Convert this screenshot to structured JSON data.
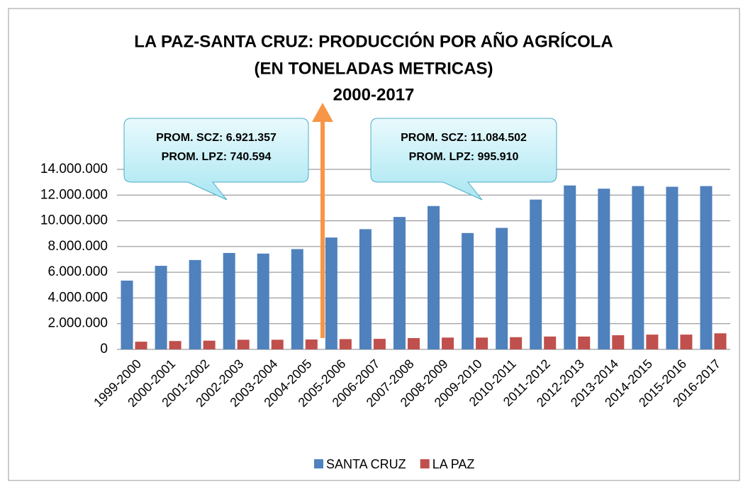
{
  "chart_data": {
    "type": "bar",
    "title": [
      "LA PAZ-SANTA CRUZ: PRODUCCIÓN POR AÑO AGRÍCOLA",
      "(EN TONELADAS METRICAS)",
      "2000-2017"
    ],
    "categories": [
      "1999-2000",
      "2000-2001",
      "2001-2002",
      "2002-2003",
      "2003-2004",
      "2004-2005",
      "2005-2006",
      "2006-2007",
      "2007-2008",
      "2008-2009",
      "2009-2010",
      "2010-2011",
      "2011-2012",
      "2012-2013",
      "2013-2014",
      "2014-2015",
      "2015-2016",
      "2016-2017"
    ],
    "series": [
      {
        "name": "SANTA CRUZ",
        "color": "#4f81bd",
        "values": [
          5350000,
          6500000,
          6950000,
          7500000,
          7450000,
          7800000,
          8700000,
          9350000,
          10300000,
          11150000,
          9050000,
          9450000,
          11650000,
          12750000,
          12500000,
          12700000,
          12650000,
          12700000
        ]
      },
      {
        "name": "LA PAZ",
        "color": "#c0504d",
        "values": [
          600000,
          650000,
          680000,
          750000,
          750000,
          770000,
          800000,
          820000,
          880000,
          920000,
          920000,
          950000,
          1000000,
          1000000,
          1100000,
          1150000,
          1150000,
          1250000
        ]
      }
    ],
    "ylim": [
      0,
      14000000
    ],
    "yticks": [
      0,
      {
        "value": 2000000,
        "label": "2.000.000"
      },
      {
        "value": 4000000,
        "label": "4.000.000"
      },
      {
        "value": 6000000,
        "label": "6.000.000"
      },
      {
        "value": 8000000,
        "label": "8.000.000"
      },
      {
        "value": 10000000,
        "label": "10.000.000"
      },
      {
        "value": 12000000,
        "label": "12.000.000"
      },
      {
        "value": 14000000,
        "label": "14.000.000"
      }
    ],
    "grid": true,
    "legend": "bottom",
    "annotations": [
      [
        "PROM. SCZ: 6.921.357",
        "PROM. LPZ: 740.594"
      ],
      [
        "PROM. SCZ: 11.084.502",
        "PROM. LPZ: 995.910"
      ]
    ]
  }
}
